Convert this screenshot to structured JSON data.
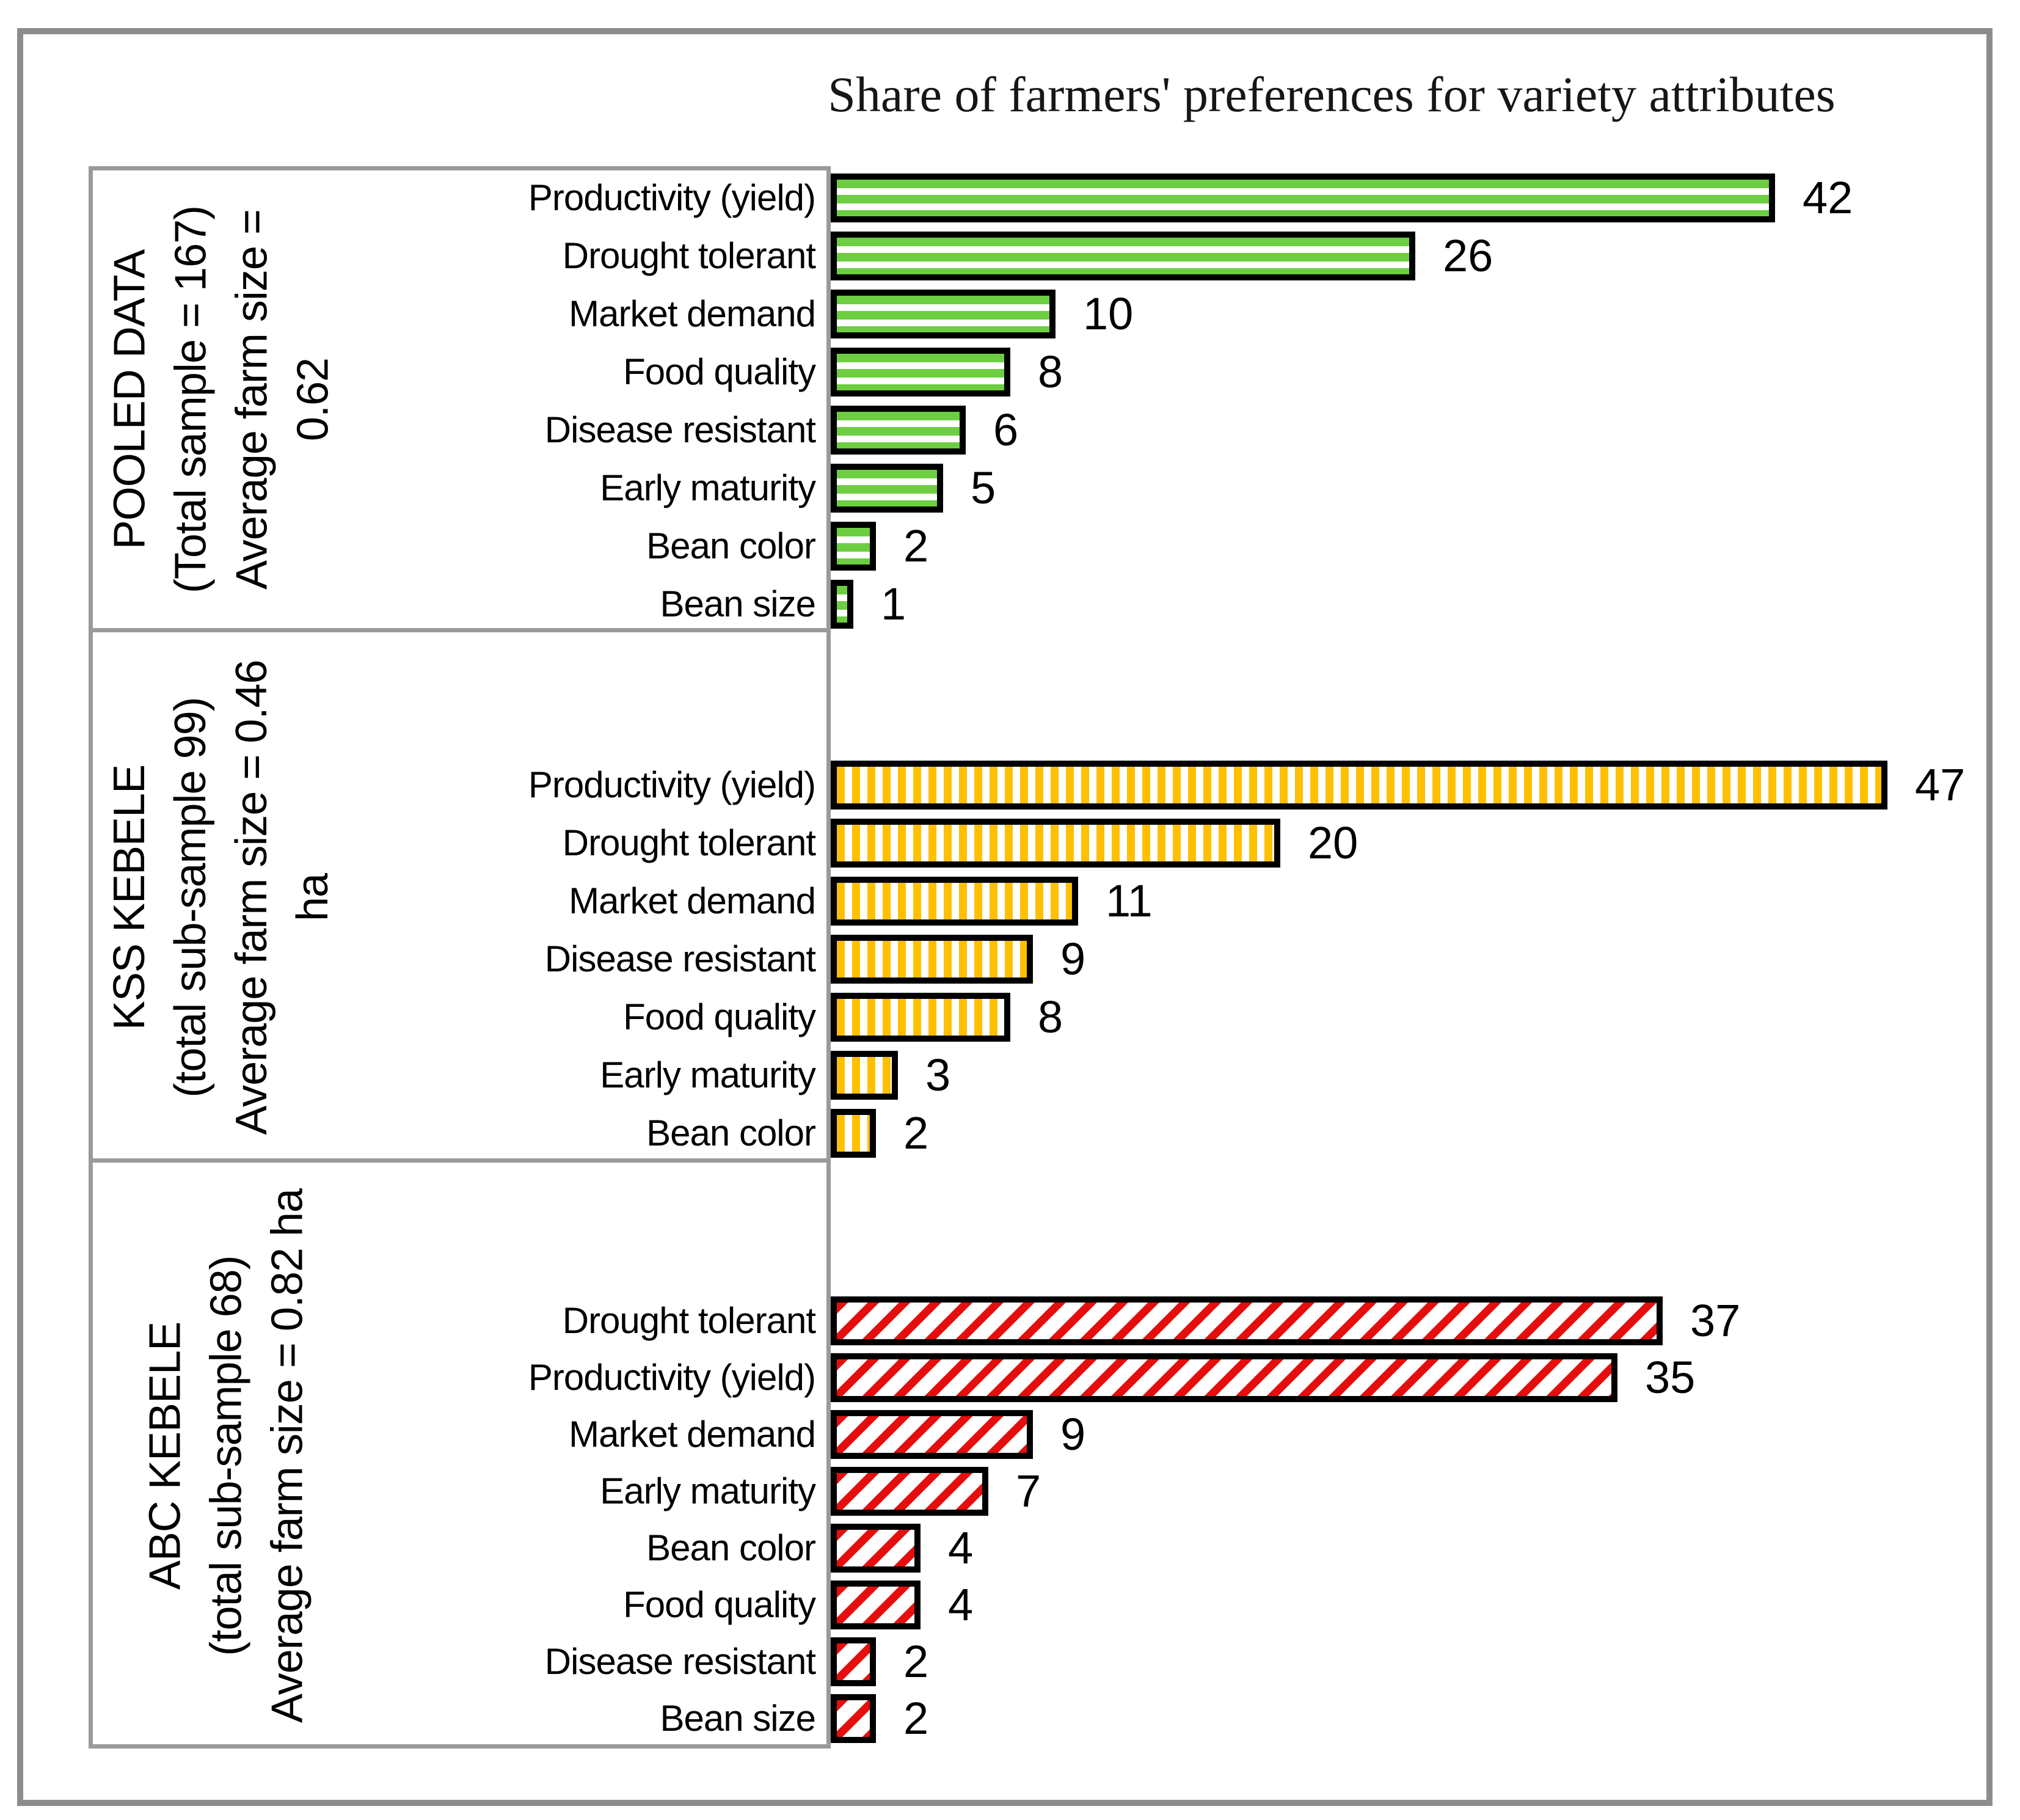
{
  "chart_data": {
    "type": "bar",
    "orientation": "horizontal",
    "title": "Share of farmers' preferences for variety attributes",
    "grid": false,
    "legend": "none",
    "data_labels": true,
    "value_axis": {
      "min": 0,
      "implied_max": 50,
      "ticks_visible": false
    },
    "colors": {
      "pooled_green": "#6cce40",
      "kss_gold": "#ffc000",
      "abc_red": "#e60d0d",
      "bar_border": "#000000",
      "frame_gray": "#8c8c8c",
      "box_gray": "#9a9a9a"
    },
    "groups": [
      {
        "id": "pooled-data",
        "label_lines": [
          "POOLED DATA",
          "(Total sample = 167)",
          "Average farm size =",
          "0.62"
        ],
        "stripe_pattern": "horizontal",
        "color_key": "pooled_green",
        "categories": [
          "Productivity (yield)",
          "Drought tolerant",
          "Market demand",
          "Food quality",
          "Disease resistant",
          "Early maturity",
          "Bean color",
          "Bean size"
        ],
        "values": [
          42,
          26,
          10,
          8,
          6,
          5,
          2,
          1
        ]
      },
      {
        "id": "kss-kebele",
        "label_lines": [
          "KSS KEBELE",
          "(total sub-sample 99)",
          "Average farm size = 0.46",
          "ha"
        ],
        "stripe_pattern": "vertical",
        "color_key": "kss_gold",
        "categories": [
          "Productivity (yield)",
          "Drought tolerant",
          "Market demand",
          "Disease resistant",
          "Food quality",
          "Early maturity",
          "Bean color"
        ],
        "values": [
          47,
          20,
          11,
          9,
          8,
          3,
          2
        ]
      },
      {
        "id": "abc-kebele",
        "label_lines": [
          "ABC KEBELE",
          "(total sub-sample 68)",
          "Average farm size = 0.82 ha"
        ],
        "stripe_pattern": "diagonal",
        "color_key": "abc_red",
        "categories": [
          "Drought tolerant",
          "Productivity (yield)",
          "Market demand",
          "Early maturity",
          "Bean color",
          "Food quality",
          "Disease resistant",
          "Bean size"
        ],
        "values": [
          37,
          35,
          9,
          7,
          4,
          4,
          2,
          2
        ]
      }
    ]
  }
}
